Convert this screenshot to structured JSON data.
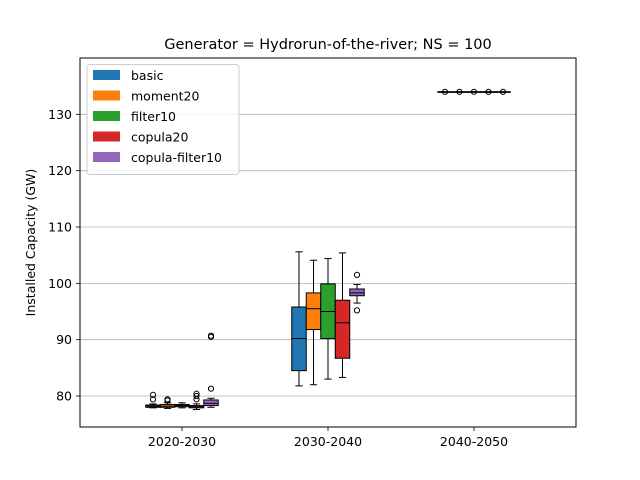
{
  "chart_data": {
    "type": "box",
    "title": "Generator = Hydrorun-of-the-river; NS = 100",
    "xlabel": "",
    "ylabel": "Installed Capacity (GW)",
    "ylim": [
      74.5,
      140.0
    ],
    "yticks": [
      80,
      90,
      100,
      110,
      120,
      130
    ],
    "grid": "horizontal",
    "legend_position": "top-left",
    "categories": [
      "2020-2030",
      "2030-2040",
      "2040-2050"
    ],
    "series": [
      {
        "name": "basic",
        "color": "#1f77b4",
        "boxes": [
          {
            "whislo": 77.9,
            "q1": 78.0,
            "med": 78.2,
            "q3": 78.4,
            "whishi": 78.6,
            "fliers": [
              79.4,
              80.2
            ]
          },
          {
            "whislo": 81.8,
            "q1": 84.5,
            "med": 90.2,
            "q3": 95.8,
            "whishi": 105.6,
            "fliers": []
          },
          {
            "whislo": 134.0,
            "q1": 134.0,
            "med": 134.0,
            "q3": 134.0,
            "whishi": 134.0,
            "fliers": [
              134.0
            ]
          }
        ]
      },
      {
        "name": "moment20",
        "color": "#ff7f0e",
        "boxes": [
          {
            "whislo": 77.8,
            "q1": 78.0,
            "med": 78.2,
            "q3": 78.5,
            "whishi": 78.8,
            "fliers": [
              79.2,
              79.4
            ]
          },
          {
            "whislo": 82.0,
            "q1": 91.8,
            "med": 95.5,
            "q3": 98.3,
            "whishi": 104.1,
            "fliers": []
          },
          {
            "whislo": 134.0,
            "q1": 134.0,
            "med": 134.0,
            "q3": 134.0,
            "whishi": 134.0,
            "fliers": [
              134.0
            ]
          }
        ]
      },
      {
        "name": "filter10",
        "color": "#2ca02c",
        "boxes": [
          {
            "whislo": 77.9,
            "q1": 78.1,
            "med": 78.3,
            "q3": 78.5,
            "whishi": 78.8,
            "fliers": []
          },
          {
            "whislo": 83.0,
            "q1": 90.2,
            "med": 95.0,
            "q3": 99.9,
            "whishi": 104.4,
            "fliers": []
          },
          {
            "whislo": 134.0,
            "q1": 134.0,
            "med": 134.0,
            "q3": 134.0,
            "whishi": 134.0,
            "fliers": [
              134.0
            ]
          }
        ]
      },
      {
        "name": "copula20",
        "color": "#d62728",
        "boxes": [
          {
            "whislo": 77.6,
            "q1": 77.9,
            "med": 78.1,
            "q3": 78.3,
            "whishi": 78.6,
            "fliers": [
              79.4,
              80.0,
              80.4
            ]
          },
          {
            "whislo": 83.3,
            "q1": 86.7,
            "med": 93.0,
            "q3": 97.0,
            "whishi": 105.4,
            "fliers": []
          },
          {
            "whislo": 134.0,
            "q1": 134.0,
            "med": 134.0,
            "q3": 134.0,
            "whishi": 134.0,
            "fliers": [
              134.0
            ]
          }
        ]
      },
      {
        "name": "copula-filter10",
        "color": "#9467bd",
        "boxes": [
          {
            "whislo": 78.0,
            "q1": 78.3,
            "med": 78.7,
            "q3": 79.3,
            "whishi": 79.6,
            "fliers": [
              81.3,
              90.5,
              90.7
            ]
          },
          {
            "whislo": 96.5,
            "q1": 97.8,
            "med": 98.3,
            "q3": 99.0,
            "whishi": 99.8,
            "fliers": [
              95.2,
              101.5
            ]
          },
          {
            "whislo": 134.0,
            "q1": 134.0,
            "med": 134.0,
            "q3": 134.0,
            "whishi": 134.0,
            "fliers": [
              134.0
            ]
          }
        ]
      }
    ]
  }
}
